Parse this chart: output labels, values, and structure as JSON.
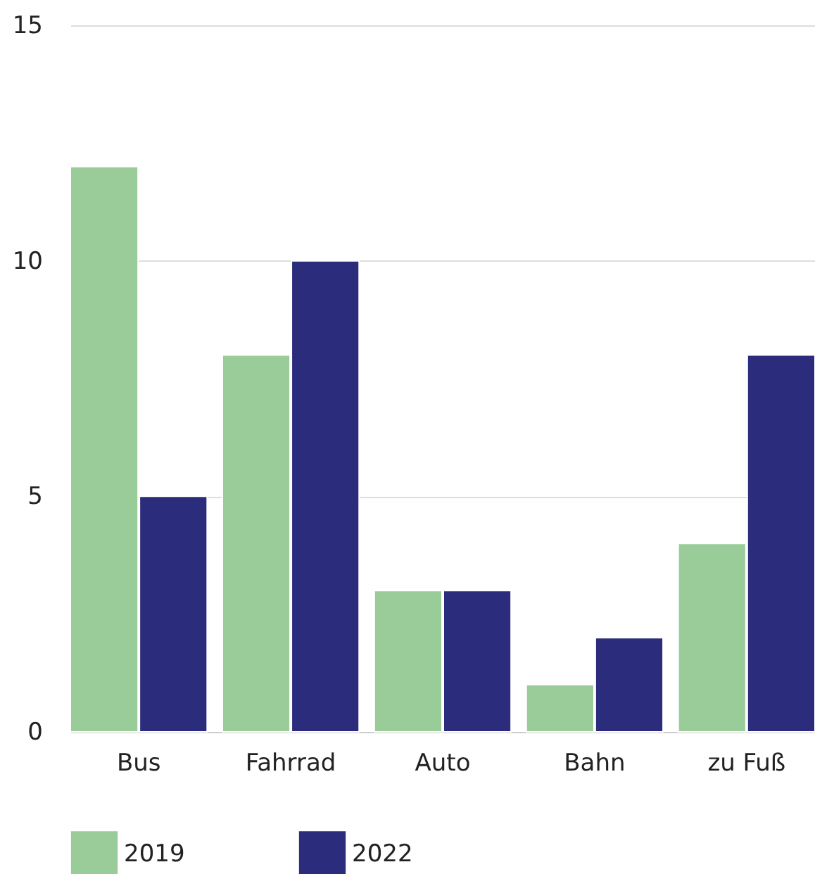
{
  "chart_data": {
    "type": "bar",
    "categories": [
      "Bus",
      "Fahrrad",
      "Auto",
      "Bahn",
      "zu Fuß"
    ],
    "series": [
      {
        "name": "2019",
        "color": "#99cc99",
        "values": [
          12,
          8,
          3,
          1,
          4
        ]
      },
      {
        "name": "2022",
        "color": "#2b2c7c",
        "values": [
          5,
          10,
          3,
          2,
          8
        ]
      }
    ],
    "ylim": [
      0,
      15
    ],
    "yticks": [
      0,
      5,
      10,
      15
    ],
    "grid": "y",
    "legend": "bottom"
  }
}
